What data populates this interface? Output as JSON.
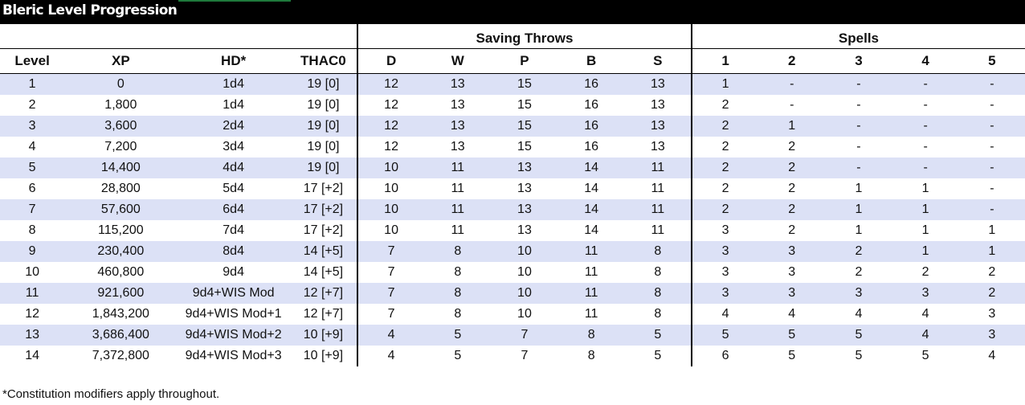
{
  "title": "Bleric Level Progression",
  "groups": {
    "saving_throws": "Saving Throws",
    "spells": "Spells"
  },
  "headers": [
    "Level",
    "XP",
    "HD*",
    "THAC0",
    "D",
    "W",
    "P",
    "B",
    "S",
    "1",
    "2",
    "3",
    "4",
    "5"
  ],
  "rows": [
    [
      "1",
      "0",
      "1d4",
      "19 [0]",
      "12",
      "13",
      "15",
      "16",
      "13",
      "1",
      "-",
      "-",
      "-",
      "-"
    ],
    [
      "2",
      "1,800",
      "1d4",
      "19 [0]",
      "12",
      "13",
      "15",
      "16",
      "13",
      "2",
      "-",
      "-",
      "-",
      "-"
    ],
    [
      "3",
      "3,600",
      "2d4",
      "19 [0]",
      "12",
      "13",
      "15",
      "16",
      "13",
      "2",
      "1",
      "-",
      "-",
      "-"
    ],
    [
      "4",
      "7,200",
      "3d4",
      "19 [0]",
      "12",
      "13",
      "15",
      "16",
      "13",
      "2",
      "2",
      "-",
      "-",
      "-"
    ],
    [
      "5",
      "14,400",
      "4d4",
      "19 [0]",
      "10",
      "11",
      "13",
      "14",
      "11",
      "2",
      "2",
      "-",
      "-",
      "-"
    ],
    [
      "6",
      "28,800",
      "5d4",
      "17 [+2]",
      "10",
      "11",
      "13",
      "14",
      "11",
      "2",
      "2",
      "1",
      "1",
      "-"
    ],
    [
      "7",
      "57,600",
      "6d4",
      "17 [+2]",
      "10",
      "11",
      "13",
      "14",
      "11",
      "2",
      "2",
      "1",
      "1",
      "-"
    ],
    [
      "8",
      "115,200",
      "7d4",
      "17 [+2]",
      "10",
      "11",
      "13",
      "14",
      "11",
      "3",
      "2",
      "1",
      "1",
      "1"
    ],
    [
      "9",
      "230,400",
      "8d4",
      "14 [+5]",
      "7",
      "8",
      "10",
      "11",
      "8",
      "3",
      "3",
      "2",
      "1",
      "1"
    ],
    [
      "10",
      "460,800",
      "9d4",
      "14 [+5]",
      "7",
      "8",
      "10",
      "11",
      "8",
      "3",
      "3",
      "2",
      "2",
      "2"
    ],
    [
      "11",
      "921,600",
      "9d4+WIS Mod",
      "12 [+7]",
      "7",
      "8",
      "10",
      "11",
      "8",
      "3",
      "3",
      "3",
      "3",
      "2"
    ],
    [
      "12",
      "1,843,200",
      "9d4+WIS Mod+1",
      "12 [+7]",
      "7",
      "8",
      "10",
      "11",
      "8",
      "4",
      "4",
      "4",
      "4",
      "3"
    ],
    [
      "13",
      "3,686,400",
      "9d4+WIS Mod+2",
      "10 [+9]",
      "4",
      "5",
      "7",
      "8",
      "5",
      "5",
      "5",
      "5",
      "4",
      "3"
    ],
    [
      "14",
      "7,372,800",
      "9d4+WIS Mod+3",
      "10 [+9]",
      "4",
      "5",
      "7",
      "8",
      "5",
      "6",
      "5",
      "5",
      "5",
      "4"
    ]
  ],
  "footnote": "*Constitution modifiers apply throughout."
}
